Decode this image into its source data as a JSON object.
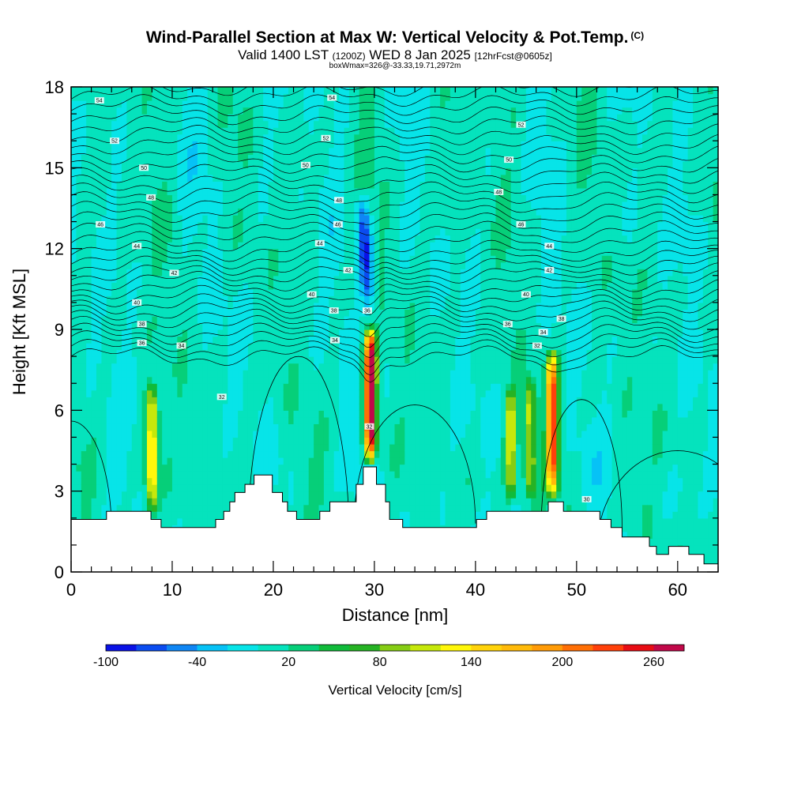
{
  "header": {
    "title": "Wind-Parallel Section at Max W: Vertical Velocity & Pot.Temp.",
    "copyright": "(C)",
    "valid_prefix": "Valid 1400 LST",
    "valid_utc": "(1200Z)",
    "valid_date": "WED 8 Jan 2025",
    "forecast": "[12hrFcst@0605z]",
    "info": "boxWmax=326@-33.33,19.71,2972m"
  },
  "chart_data": {
    "type": "heatmap",
    "xlabel": "Distance [nm]",
    "ylabel": "Height [Kft MSL]",
    "xlim": [
      0,
      64
    ],
    "ylim": [
      0,
      18
    ],
    "x_ticks": [
      "0",
      "10",
      "20",
      "30",
      "40",
      "50",
      "60"
    ],
    "y_ticks": [
      "0",
      "3",
      "6",
      "9",
      "12",
      "15",
      "18"
    ],
    "colorbar": {
      "label": "Vertical Velocity [cm/s]",
      "tick_labels": [
        "-100",
        "-40",
        "20",
        "80",
        "140",
        "200",
        "260"
      ],
      "levels": [
        -100,
        -80,
        -60,
        -40,
        -20,
        0,
        20,
        40,
        60,
        80,
        100,
        120,
        140,
        160,
        180,
        200,
        220,
        240,
        260,
        280
      ],
      "colors": [
        "#0a12e6",
        "#0b4cf0",
        "#0f86f4",
        "#06c2f6",
        "#07e4e8",
        "#05e3bd",
        "#06cf79",
        "#10bb3a",
        "#26b324",
        "#86cd14",
        "#c6e80b",
        "#fff70a",
        "#ffd30b",
        "#ffba0a",
        "#ff9b07",
        "#ff6f05",
        "#ff400a",
        "#e80d14",
        "#c10849"
      ]
    },
    "terrain": [
      [
        0,
        1.95
      ],
      [
        3.5,
        1.95
      ],
      [
        3.5,
        2.25
      ],
      [
        7.9,
        2.25
      ],
      [
        7.9,
        1.95
      ],
      [
        8.9,
        1.95
      ],
      [
        8.9,
        1.65
      ],
      [
        14.3,
        1.65
      ],
      [
        14.3,
        1.95
      ],
      [
        15.1,
        1.95
      ],
      [
        15.1,
        2.25
      ],
      [
        15.7,
        2.25
      ],
      [
        15.7,
        2.6
      ],
      [
        16.2,
        2.6
      ],
      [
        16.2,
        2.95
      ],
      [
        17.2,
        2.95
      ],
      [
        17.2,
        3.25
      ],
      [
        18.1,
        3.25
      ],
      [
        18.1,
        3.6
      ],
      [
        19.9,
        3.6
      ],
      [
        19.9,
        2.95
      ],
      [
        20.9,
        2.95
      ],
      [
        20.9,
        2.6
      ],
      [
        21.4,
        2.6
      ],
      [
        21.4,
        2.25
      ],
      [
        22.3,
        2.25
      ],
      [
        22.3,
        1.95
      ],
      [
        24.6,
        1.95
      ],
      [
        24.6,
        2.25
      ],
      [
        25.6,
        2.25
      ],
      [
        25.6,
        2.6
      ],
      [
        28.2,
        2.6
      ],
      [
        28.2,
        3.25
      ],
      [
        28.9,
        3.25
      ],
      [
        28.9,
        3.9
      ],
      [
        30.2,
        3.9
      ],
      [
        30.2,
        3.25
      ],
      [
        31.1,
        3.25
      ],
      [
        31.1,
        2.6
      ],
      [
        31.5,
        2.6
      ],
      [
        31.5,
        1.95
      ],
      [
        32.8,
        1.95
      ],
      [
        32.8,
        1.65
      ],
      [
        40.1,
        1.65
      ],
      [
        40.1,
        1.95
      ],
      [
        41.1,
        1.95
      ],
      [
        41.1,
        2.25
      ],
      [
        47.2,
        2.25
      ],
      [
        47.2,
        2.6
      ],
      [
        48.7,
        2.6
      ],
      [
        48.7,
        2.25
      ],
      [
        52.3,
        2.25
      ],
      [
        52.3,
        1.95
      ],
      [
        53.4,
        1.95
      ],
      [
        53.4,
        1.65
      ],
      [
        54.5,
        1.65
      ],
      [
        54.5,
        1.3
      ],
      [
        57.2,
        1.3
      ],
      [
        57.2,
        0.95
      ],
      [
        57.9,
        0.95
      ],
      [
        57.9,
        0.65
      ],
      [
        59.1,
        0.65
      ],
      [
        59.1,
        0.95
      ],
      [
        61.1,
        0.95
      ],
      [
        61.1,
        0.65
      ],
      [
        62.6,
        0.65
      ],
      [
        62.6,
        0.3
      ],
      [
        64,
        0.3
      ]
    ],
    "plumes": [
      {
        "x": 29.6,
        "y0": 3.9,
        "y1": 9.2,
        "peak": 326
      },
      {
        "x": 47.6,
        "y0": 2.6,
        "y1": 8.4,
        "peak": 230
      },
      {
        "x": 8.0,
        "y0": 2.0,
        "y1": 7.2,
        "peak": 150
      },
      {
        "x": 43.5,
        "y0": 2.5,
        "y1": 7.0,
        "peak": 120
      },
      {
        "x": 45.4,
        "y0": 2.6,
        "y1": 7.4,
        "peak": 105
      }
    ],
    "downdraft": {
      "x": 29.5,
      "y0": 9.4,
      "y1": 14.4,
      "peak": -95
    },
    "contour_labels": [
      {
        "x": 2.8,
        "y": 17.5,
        "text": "54"
      },
      {
        "x": 25.8,
        "y": 17.6,
        "text": "54"
      },
      {
        "x": 4.3,
        "y": 16.0,
        "text": "52"
      },
      {
        "x": 25.2,
        "y": 16.1,
        "text": "52"
      },
      {
        "x": 44.5,
        "y": 16.6,
        "text": "52"
      },
      {
        "x": 7.2,
        "y": 15.0,
        "text": "50"
      },
      {
        "x": 23.2,
        "y": 15.1,
        "text": "50"
      },
      {
        "x": 43.3,
        "y": 15.3,
        "text": "50"
      },
      {
        "x": 7.9,
        "y": 13.9,
        "text": "48"
      },
      {
        "x": 26.5,
        "y": 13.8,
        "text": "48"
      },
      {
        "x": 42.3,
        "y": 14.1,
        "text": "48"
      },
      {
        "x": 2.9,
        "y": 12.9,
        "text": "46"
      },
      {
        "x": 26.4,
        "y": 12.9,
        "text": "46"
      },
      {
        "x": 44.5,
        "y": 12.9,
        "text": "46"
      },
      {
        "x": 6.5,
        "y": 12.1,
        "text": "44"
      },
      {
        "x": 24.6,
        "y": 12.2,
        "text": "44"
      },
      {
        "x": 47.3,
        "y": 12.1,
        "text": "44"
      },
      {
        "x": 10.2,
        "y": 11.1,
        "text": "42"
      },
      {
        "x": 27.4,
        "y": 11.2,
        "text": "42"
      },
      {
        "x": 47.3,
        "y": 11.2,
        "text": "42"
      },
      {
        "x": 6.5,
        "y": 10.0,
        "text": "40"
      },
      {
        "x": 23.8,
        "y": 10.3,
        "text": "40"
      },
      {
        "x": 45.0,
        "y": 10.3,
        "text": "40"
      },
      {
        "x": 7.0,
        "y": 9.2,
        "text": "38"
      },
      {
        "x": 26.0,
        "y": 9.7,
        "text": "38"
      },
      {
        "x": 48.5,
        "y": 9.4,
        "text": "38"
      },
      {
        "x": 29.3,
        "y": 9.7,
        "text": "36"
      },
      {
        "x": 43.2,
        "y": 9.2,
        "text": "36"
      },
      {
        "x": 10.9,
        "y": 8.4,
        "text": "34"
      },
      {
        "x": 26.1,
        "y": 8.6,
        "text": "34"
      },
      {
        "x": 46.7,
        "y": 8.9,
        "text": "34"
      },
      {
        "x": 7.0,
        "y": 8.5,
        "text": "36"
      },
      {
        "x": 46.1,
        "y": 8.4,
        "text": "32"
      },
      {
        "x": 14.9,
        "y": 6.5,
        "text": "32"
      },
      {
        "x": 29.5,
        "y": 5.4,
        "text": "32"
      },
      {
        "x": 51.0,
        "y": 2.7,
        "text": "30"
      }
    ]
  }
}
